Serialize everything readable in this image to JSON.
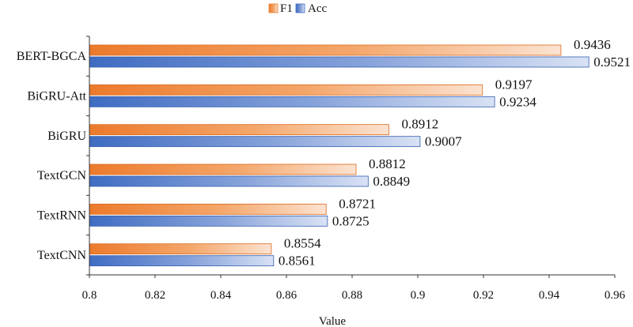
{
  "chart_data": {
    "type": "bar",
    "orientation": "horizontal",
    "xlabel": "Value",
    "ylabel": "",
    "title": "",
    "xlim": [
      0.8,
      0.96
    ],
    "xticks": [
      "0.8",
      "0.82",
      "0.84",
      "0.86",
      "0.88",
      "0.9",
      "0.92",
      "0.94",
      "0.96"
    ],
    "grid": false,
    "legend_position": "top-center",
    "categories": [
      "BERT-BGCA",
      "BiGRU-Att",
      "BiGRU",
      "TextGCN",
      "TextRNN",
      "TextCNN"
    ],
    "series": [
      {
        "name": "F1",
        "color": "#ee7d2f",
        "values": [
          0.9436,
          0.9197,
          0.8912,
          0.8812,
          0.8721,
          0.8554
        ],
        "labels": [
          "0.9436",
          "0.9197",
          "0.8912",
          "0.8812",
          "0.8721",
          "0.8554"
        ]
      },
      {
        "name": "Acc",
        "color": "#4470c4",
        "values": [
          0.9521,
          0.9234,
          0.9007,
          0.8849,
          0.8725,
          0.8561
        ],
        "labels": [
          "0.9521",
          "0.9234",
          "0.9007",
          "0.8849",
          "0.8725",
          "0.8561"
        ]
      }
    ]
  }
}
